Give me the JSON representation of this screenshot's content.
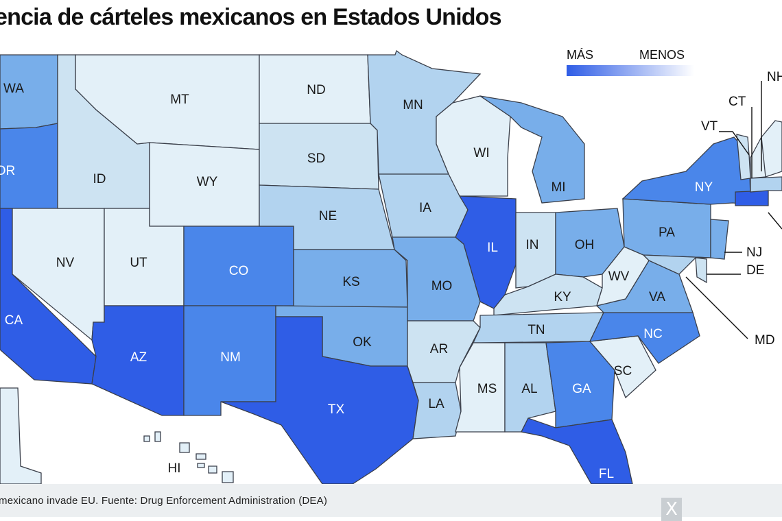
{
  "title": "encia de cárteles mexicanos en Estados Unidos",
  "legend": {
    "more": "MÁS",
    "less": "MENOS",
    "color_more": "#2f5de6",
    "color_less": "#ffffff"
  },
  "colors": {
    "level1": "#e3f0f8",
    "level2": "#cde3f2",
    "level3": "#b2d3ef",
    "level4": "#78aeea",
    "level5": "#4a86ea",
    "level6": "#2f5de6",
    "border": "#3a3f4a"
  },
  "states": [
    {
      "code": "WA",
      "level": 4
    },
    {
      "code": "OR",
      "level": 5
    },
    {
      "code": "CA",
      "level": 6
    },
    {
      "code": "ID",
      "level": 2
    },
    {
      "code": "NV",
      "level": 1
    },
    {
      "code": "UT",
      "level": 1
    },
    {
      "code": "AZ",
      "level": 6
    },
    {
      "code": "MT",
      "level": 1
    },
    {
      "code": "WY",
      "level": 1
    },
    {
      "code": "CO",
      "level": 5
    },
    {
      "code": "NM",
      "level": 5
    },
    {
      "code": "ND",
      "level": 1
    },
    {
      "code": "SD",
      "level": 2
    },
    {
      "code": "NE",
      "level": 3
    },
    {
      "code": "KS",
      "level": 4
    },
    {
      "code": "OK",
      "level": 4
    },
    {
      "code": "TX",
      "level": 6
    },
    {
      "code": "MN",
      "level": 3
    },
    {
      "code": "IA",
      "level": 3
    },
    {
      "code": "MO",
      "level": 4
    },
    {
      "code": "AR",
      "level": 2
    },
    {
      "code": "LA",
      "level": 3
    },
    {
      "code": "WI",
      "level": 1
    },
    {
      "code": "IL",
      "level": 6
    },
    {
      "code": "MS",
      "level": 1
    },
    {
      "code": "MI",
      "level": 4
    },
    {
      "code": "IN",
      "level": 2
    },
    {
      "code": "KY",
      "level": 2
    },
    {
      "code": "TN",
      "level": 3
    },
    {
      "code": "AL",
      "level": 3
    },
    {
      "code": "OH",
      "level": 4
    },
    {
      "code": "GA",
      "level": 5
    },
    {
      "code": "FL",
      "level": 6
    },
    {
      "code": "WV",
      "level": 1
    },
    {
      "code": "VA",
      "level": 4
    },
    {
      "code": "NC",
      "level": 5
    },
    {
      "code": "SC",
      "level": 1
    },
    {
      "code": "PA",
      "level": 4
    },
    {
      "code": "NY",
      "level": 5
    },
    {
      "code": "HI",
      "level": 1
    }
  ],
  "callouts": [
    "NH",
    "CT",
    "VT",
    "NJ",
    "DE",
    "MD"
  ],
  "caption": "mexicano invade EU. Fuente: Drug Enforcement Administration (DEA)",
  "close_label": "X"
}
